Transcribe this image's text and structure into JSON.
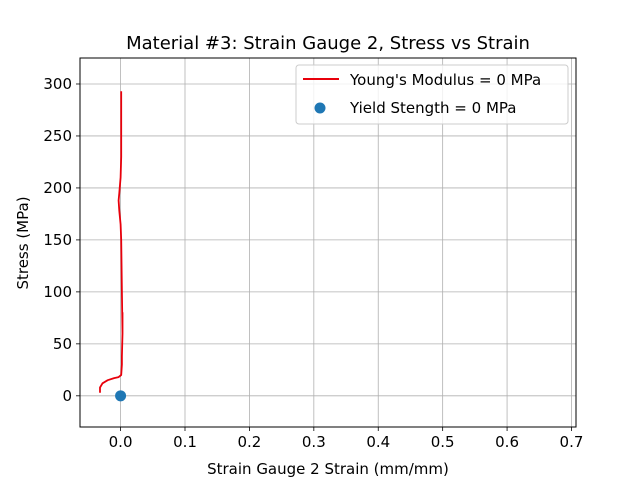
{
  "chart_data": {
    "type": "line",
    "title": "Material #3: Strain Gauge 2, Stress vs Strain",
    "xlabel": "Strain Gauge 2 Strain (mm/mm)",
    "ylabel": "Stress (MPa)",
    "xlim": [
      -0.063,
      0.707
    ],
    "ylim": [
      -30,
      325
    ],
    "xticks": [
      0.0,
      0.1,
      0.2,
      0.3,
      0.4,
      0.5,
      0.6,
      0.7
    ],
    "xtick_labels": [
      "0.0",
      "0.1",
      "0.2",
      "0.3",
      "0.4",
      "0.5",
      "0.6",
      "0.7"
    ],
    "yticks": [
      0,
      50,
      100,
      150,
      200,
      250,
      300
    ],
    "ytick_labels": [
      "0",
      "50",
      "100",
      "150",
      "200",
      "250",
      "300"
    ],
    "grid": true,
    "legend_position": "top-right",
    "series": [
      {
        "name": "Young's Modulus = 0 MPa",
        "kind": "line",
        "color": "#e8000b",
        "x": [
          -0.032,
          -0.032,
          -0.028,
          -0.02,
          -0.01,
          -0.003,
          0.001,
          0.002,
          0.002,
          0.003,
          0.003,
          0.003,
          0.002,
          0.001,
          0.0,
          -0.002,
          -0.003,
          -0.002,
          0.0,
          0.001,
          0.001,
          0.001,
          0.001,
          0.001,
          0.001
        ],
        "y": [
          3,
          8,
          12,
          15,
          17,
          18,
          20,
          30,
          38,
          60,
          80,
          60,
          100,
          150,
          165,
          178,
          188,
          195,
          210,
          230,
          250,
          270,
          285,
          290,
          293
        ]
      },
      {
        "name": "Yield Stength = 0 MPa",
        "kind": "scatter",
        "color": "#1f77b4",
        "x": [
          0.0
        ],
        "y": [
          0
        ]
      }
    ]
  }
}
